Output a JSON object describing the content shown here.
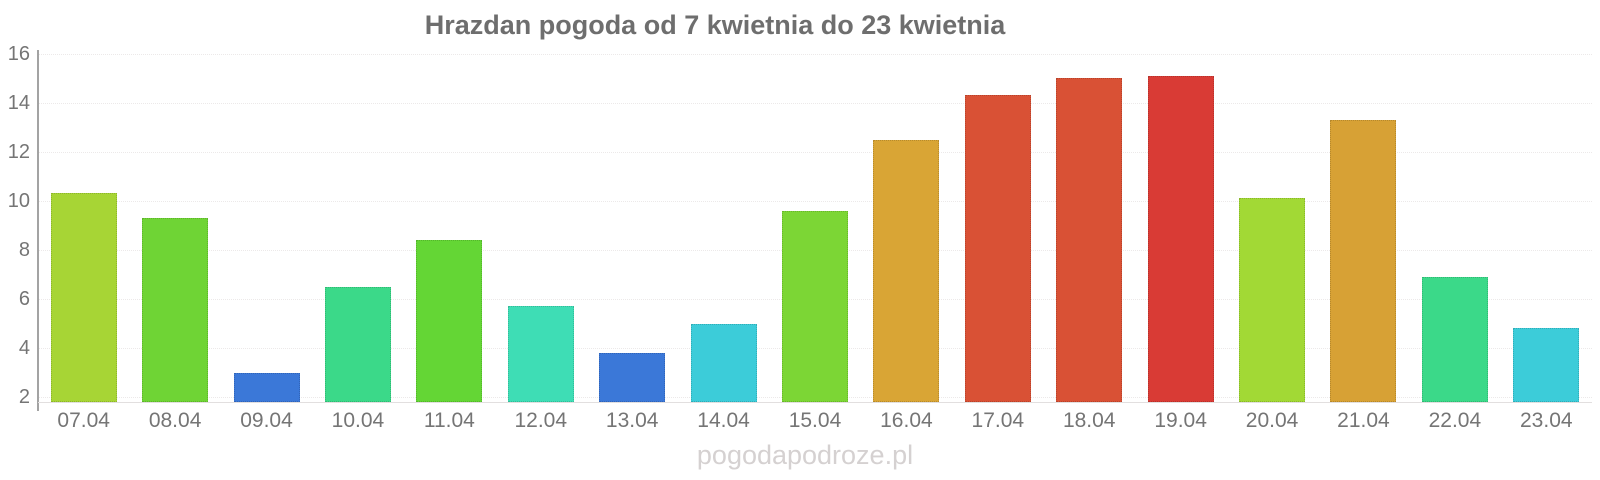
{
  "chart_data": {
    "type": "bar",
    "title": "Hrazdan pogoda od 7 kwietnia do 23 kwietnia",
    "watermark": "pogodapodroze.pl",
    "categories": [
      "07.04",
      "08.04",
      "09.04",
      "10.04",
      "11.04",
      "12.04",
      "13.04",
      "14.04",
      "15.04",
      "16.04",
      "17.04",
      "18.04",
      "19.04",
      "20.04",
      "21.04",
      "22.04",
      "23.04"
    ],
    "values": [
      10.3,
      9.3,
      3.0,
      6.5,
      8.4,
      5.7,
      3.8,
      5.0,
      9.6,
      12.5,
      14.3,
      15.0,
      15.1,
      10.1,
      13.3,
      6.9,
      4.8
    ],
    "bar_colors": [
      "#a7d535",
      "#6fd435",
      "#3b78d8",
      "#3bd989",
      "#64d635",
      "#3eddb5",
      "#3b78d8",
      "#3cccd9",
      "#7cd635",
      "#d9a535",
      "#d95135",
      "#d95135",
      "#d93b35",
      "#a2d935",
      "#d7a135",
      "#3bd989",
      "#3cccd9"
    ],
    "xlabel": "",
    "ylabel": "",
    "yticks": [
      2,
      4,
      6,
      8,
      10,
      12,
      14,
      16
    ],
    "ylim": [
      1.8,
      16.15
    ],
    "grid": true,
    "legend": "none",
    "colors": {
      "title": "#6e6e6e",
      "axis_label": "#757575",
      "axis_line": "#a3a3a3",
      "x_axis_line": "#e2dfdf",
      "gridline": "#ece9e9",
      "watermark": "#d5d1d1",
      "background": "#ffffff"
    }
  }
}
